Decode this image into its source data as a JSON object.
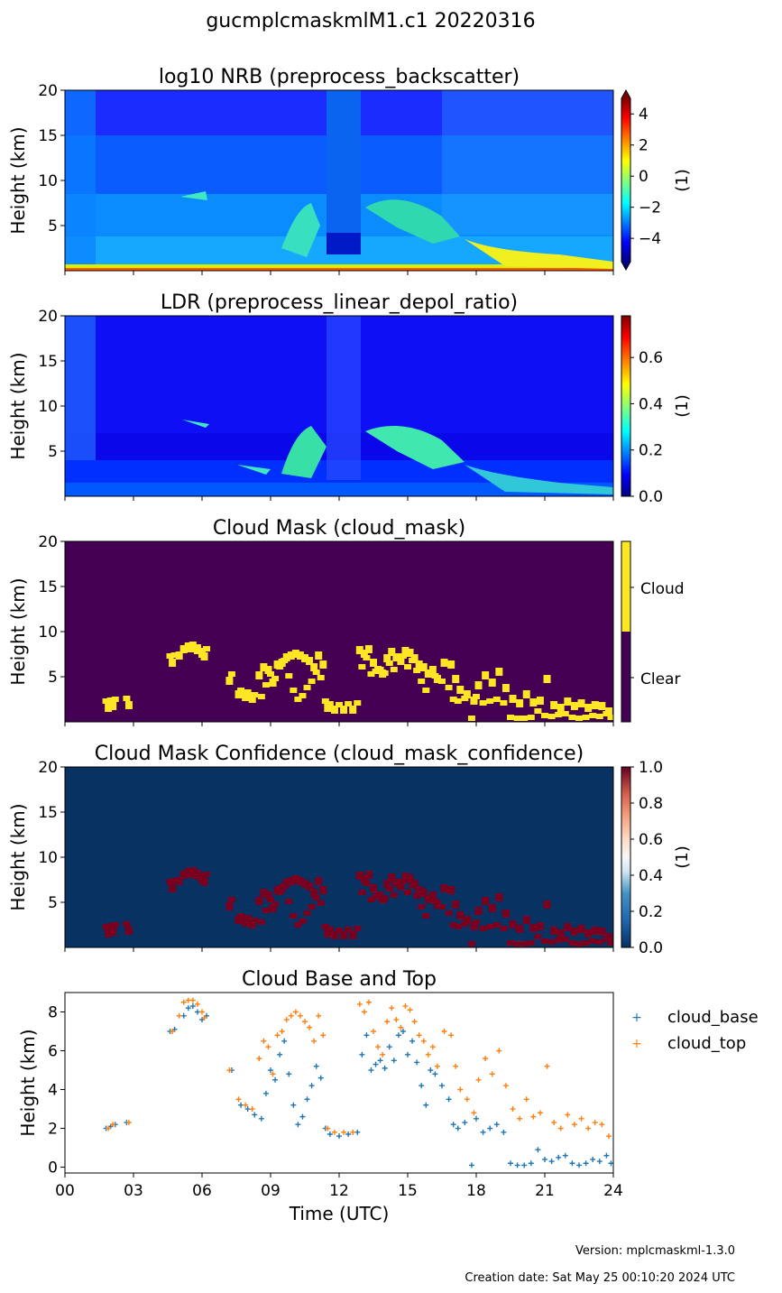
{
  "figure": {
    "suptitle": "gucmplcmaskmlM1.c1 20220316",
    "version_text": "Version: mplcmaskml-1.3.0",
    "creation_text": "Creation date: Sat May 25 00:10:20 2024 UTC"
  },
  "chart_data": [
    {
      "type": "heatmap",
      "title": "log10 NRB (preprocess_backscatter)",
      "xlabel": "",
      "ylabel": "Height (km)",
      "xlim": [
        0,
        24
      ],
      "ylim": [
        0,
        20
      ],
      "yticks": [
        5,
        10,
        15,
        20
      ],
      "colorbar": {
        "label": "(1)",
        "min": -5.5,
        "max": 5,
        "ticks": [
          -4,
          -2,
          0,
          2,
          4
        ],
        "colormap": "jet",
        "extend": "both"
      }
    },
    {
      "type": "heatmap",
      "title": "LDR (preprocess_linear_depol_ratio)",
      "xlabel": "",
      "ylabel": "Height (km)",
      "xlim": [
        0,
        24
      ],
      "ylim": [
        0,
        20
      ],
      "yticks": [
        5,
        10,
        15,
        20
      ],
      "colorbar": {
        "label": "(1)",
        "min": 0,
        "max": 0.78,
        "ticks": [
          0.0,
          0.2,
          0.4,
          0.6
        ],
        "colormap": "jet"
      }
    },
    {
      "type": "heatmap",
      "title": "Cloud Mask (cloud_mask)",
      "xlabel": "",
      "ylabel": "Height (km)",
      "xlim": [
        0,
        24
      ],
      "ylim": [
        0,
        20
      ],
      "yticks": [
        5,
        10,
        15,
        20
      ],
      "colorbar": {
        "categories": [
          "Clear",
          "Cloud"
        ],
        "colors": [
          "#440154",
          "#fde725"
        ]
      }
    },
    {
      "type": "heatmap",
      "title": "Cloud Mask Confidence (cloud_mask_confidence)",
      "xlabel": "",
      "ylabel": "Height (km)",
      "xlim": [
        0,
        24
      ],
      "ylim": [
        0,
        20
      ],
      "yticks": [
        5,
        10,
        15,
        20
      ],
      "colorbar": {
        "label": "(1)",
        "min": 0,
        "max": 1,
        "ticks": [
          0.0,
          0.2,
          0.4,
          0.6,
          0.8,
          1.0
        ],
        "colormap": "RdBu_r"
      }
    },
    {
      "type": "scatter",
      "title": "Cloud Base and Top",
      "xlabel": "Time (UTC)",
      "ylabel": "Height (km)",
      "xlim": [
        0,
        24
      ],
      "ylim": [
        -0.3,
        9
      ],
      "xticks": [
        0,
        3,
        6,
        9,
        12,
        15,
        18,
        21,
        24
      ],
      "xticklabels": [
        "00",
        "03",
        "06",
        "09",
        "12",
        "15",
        "18",
        "21",
        "24"
      ],
      "yticks": [
        0,
        2,
        4,
        6,
        8
      ],
      "legend": "right-outside-top",
      "series": [
        {
          "name": "cloud_base",
          "color": "#1f77b4",
          "x": [
            1.8,
            2.0,
            2.2,
            2.7,
            4.6,
            4.8,
            5.2,
            5.4,
            5.6,
            5.8,
            6.0,
            6.2,
            7.3,
            7.7,
            8.0,
            8.3,
            8.6,
            8.8,
            9.0,
            9.2,
            9.4,
            9.6,
            9.8,
            10.0,
            10.2,
            10.4,
            10.6,
            10.8,
            11.0,
            11.2,
            11.4,
            11.6,
            12.0,
            12.4,
            12.8,
            13.0,
            13.2,
            13.4,
            13.6,
            13.8,
            14.0,
            14.2,
            14.4,
            14.6,
            14.8,
            15.0,
            15.2,
            15.4,
            15.6,
            15.8,
            16.0,
            16.2,
            16.5,
            16.8,
            17.0,
            17.2,
            17.5,
            17.8,
            18.0,
            18.3,
            18.6,
            18.9,
            19.2,
            19.5,
            19.8,
            20.1,
            20.4,
            20.7,
            21.0,
            21.3,
            21.6,
            21.9,
            22.2,
            22.5,
            22.8,
            23.1,
            23.4,
            23.7,
            23.9
          ],
          "y": [
            2.0,
            2.1,
            2.2,
            2.3,
            7.0,
            7.1,
            7.8,
            8.2,
            8.3,
            8.0,
            7.6,
            7.8,
            5.0,
            3.2,
            3.0,
            2.7,
            2.5,
            3.8,
            5.0,
            4.5,
            5.8,
            6.5,
            4.8,
            3.2,
            2.2,
            2.6,
            3.5,
            4.2,
            5.2,
            4.6,
            2.0,
            1.7,
            1.6,
            1.7,
            1.8,
            5.8,
            6.8,
            5.0,
            5.3,
            5.5,
            5.1,
            6.2,
            5.5,
            6.8,
            7.0,
            5.8,
            6.5,
            5.4,
            4.2,
            3.2,
            5.0,
            4.8,
            4.2,
            3.5,
            2.2,
            2.0,
            2.3,
            0.1,
            2.5,
            1.8,
            2.0,
            2.2,
            1.8,
            0.2,
            0.1,
            0.1,
            0.2,
            0.9,
            0.4,
            0.3,
            0.5,
            0.6,
            0.2,
            0.1,
            0.2,
            0.4,
            0.3,
            0.6,
            0.2
          ]
        },
        {
          "name": "cloud_top",
          "color": "#ff7f0e",
          "x": [
            1.9,
            2.1,
            2.8,
            4.7,
            5.0,
            5.2,
            5.4,
            5.6,
            5.8,
            6.0,
            6.1,
            7.2,
            7.6,
            7.9,
            8.2,
            8.5,
            8.7,
            8.9,
            9.1,
            9.3,
            9.5,
            9.7,
            9.9,
            10.1,
            10.3,
            10.5,
            10.7,
            10.9,
            11.1,
            11.3,
            11.5,
            11.8,
            12.2,
            12.6,
            12.9,
            13.1,
            13.3,
            13.5,
            13.7,
            13.9,
            14.1,
            14.3,
            14.5,
            14.7,
            14.9,
            15.1,
            15.3,
            15.5,
            15.7,
            15.9,
            16.1,
            16.3,
            16.6,
            16.9,
            17.1,
            17.3,
            17.6,
            17.9,
            18.1,
            18.4,
            18.7,
            19.0,
            19.3,
            19.6,
            19.9,
            20.2,
            20.5,
            20.8,
            21.1,
            21.4,
            21.7,
            22.0,
            22.3,
            22.6,
            22.9,
            23.2,
            23.5,
            23.8
          ],
          "y": [
            2.0,
            2.2,
            2.3,
            7.0,
            7.8,
            8.5,
            8.6,
            8.6,
            8.4,
            8.0,
            7.7,
            5.0,
            3.5,
            3.2,
            3.0,
            5.6,
            6.5,
            6.2,
            4.8,
            6.8,
            7.0,
            7.6,
            7.8,
            8.0,
            7.8,
            7.5,
            7.2,
            6.5,
            7.8,
            6.8,
            2.0,
            1.8,
            1.8,
            1.8,
            8.4,
            8.0,
            8.5,
            7.0,
            6.2,
            5.8,
            7.5,
            8.2,
            7.6,
            7.2,
            8.3,
            8.1,
            7.5,
            6.8,
            6.5,
            5.8,
            6.2,
            5.2,
            7.0,
            6.8,
            5.2,
            4.0,
            3.5,
            2.8,
            4.5,
            5.6,
            4.8,
            6.0,
            4.2,
            3.0,
            2.5,
            3.5,
            2.6,
            2.8,
            5.2,
            2.3,
            2.0,
            2.7,
            2.2,
            2.5,
            2.0,
            2.3,
            2.2,
            1.6
          ]
        }
      ]
    }
  ]
}
